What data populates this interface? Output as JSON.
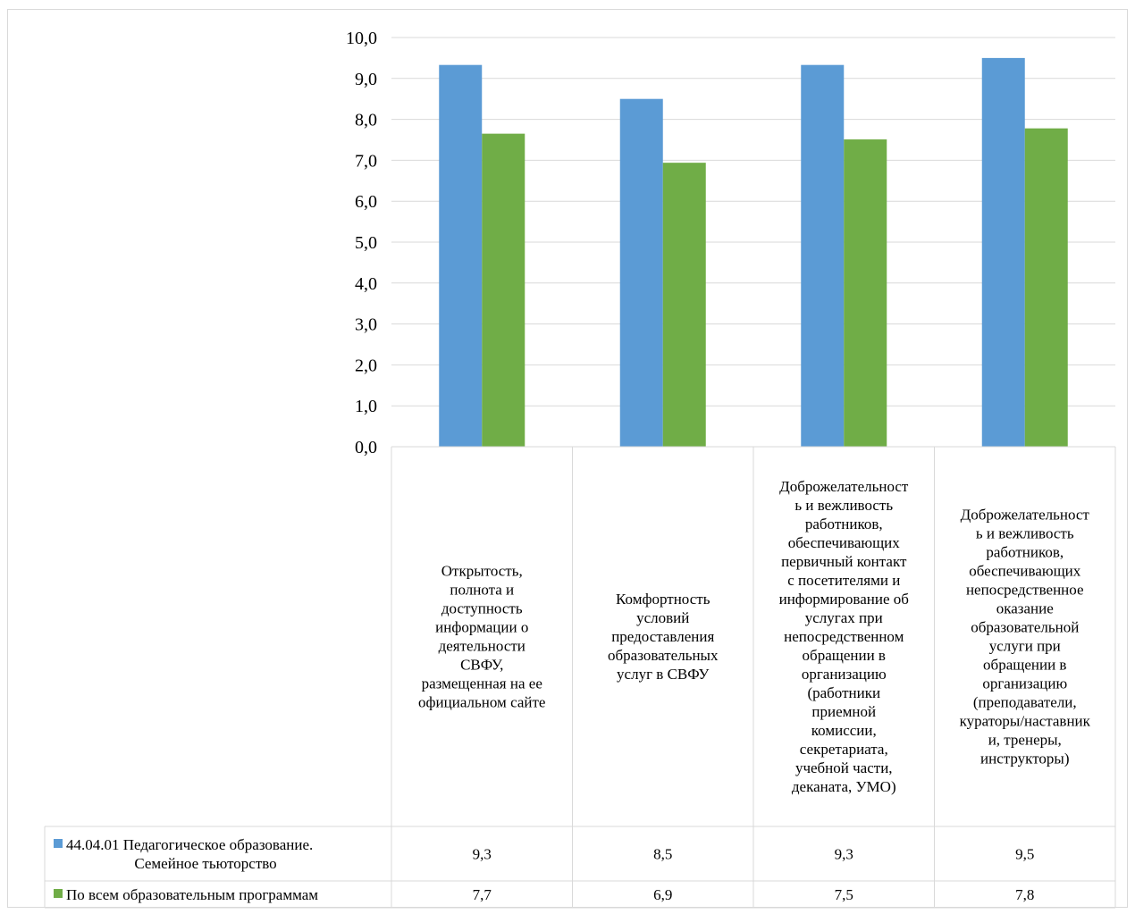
{
  "chart_data": {
    "type": "bar",
    "categories": [
      "Открытость, полнота и доступность информации о деятельности СВФУ, размещенная на ее официальном сайте",
      "Комфортность условий предоставления образовательных услуг в СВФУ",
      "Доброжелательность и вежливость работников, обеспечивающих первичный контакт с посетителями и информирование об услугах при непосредственном обращении в организацию (работники приемной комиссии, секретариата, учебной части, деканата, УМО)",
      "Доброжелательность и вежливость работников, обеспечивающих непосредственное оказание образовательной услуги при обращении в организацию (преподаватели, кураторы/наставники, тренеры, инструкторы)"
    ],
    "category_lines": [
      [
        "Открытость,",
        "полнота и",
        "доступность",
        "информации о",
        "деятельности",
        "СВФУ,",
        "размещенная на ее",
        "официальном сайте"
      ],
      [
        "Комфортность",
        "условий",
        "предоставления",
        "образовательных",
        "услуг в СВФУ"
      ],
      [
        "Доброжелательност",
        "ь и вежливость",
        "работников,",
        "обеспечивающих",
        "первичный контакт",
        "с посетителями и",
        "информирование об",
        "услугах при",
        "непосредственном",
        "обращении в",
        "организацию",
        "(работники",
        "приемной",
        "комиссии,",
        "секретариата,",
        "учебной части,",
        "деканата, УМО)"
      ],
      [
        "Доброжелательност",
        "ь и вежливость",
        "работников,",
        "обеспечивающих",
        "непосредственное",
        "оказание",
        "образовательной",
        "услуги при",
        "обращении в",
        "организацию",
        "(преподаватели,",
        "кураторы/наставник",
        "и, тренеры,",
        "инструкторы)"
      ]
    ],
    "series": [
      {
        "name": "44.04.01 Педагогическое образование. Семейное тьюторство",
        "name_lines": [
          "44.04.01 Педагогическое образование.",
          "Семейное тьюторство"
        ],
        "color": "#5b9bd5",
        "values": [
          9.33,
          8.5,
          9.33,
          9.5
        ],
        "labels": [
          "9,3",
          "8,5",
          "9,3",
          "9,5"
        ]
      },
      {
        "name": "По всем образовательным программам",
        "name_lines": [
          "По всем образовательным программам"
        ],
        "color": "#70ad47",
        "values": [
          7.65,
          6.94,
          7.51,
          7.78
        ],
        "labels": [
          "7,7",
          "6,9",
          "7,5",
          "7,8"
        ]
      }
    ],
    "yticks": [
      "0,0",
      "1,0",
      "2,0",
      "3,0",
      "4,0",
      "5,0",
      "6,0",
      "7,0",
      "8,0",
      "9,0",
      "10,0"
    ],
    "ylim": [
      0,
      10
    ],
    "grid": true,
    "legend": "data-table"
  }
}
